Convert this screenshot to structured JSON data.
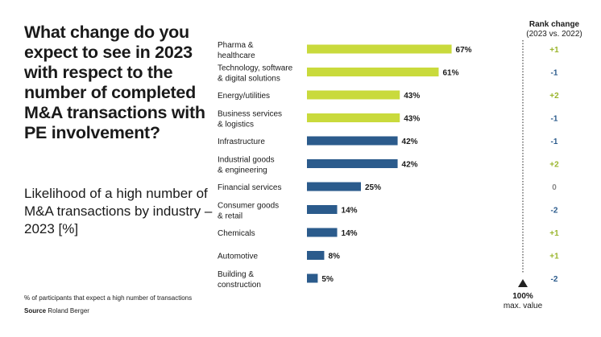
{
  "title": "What change do you expect to see in 2023 with respect to the number of completed M&A transactions with PE involvement?",
  "subtitle": "Likelihood of a high number of M&A transactions by industry – 2023 [%]",
  "note": "% of participants that expect a high number of transactions",
  "source_label": "Source",
  "source_value": "Roland Berger",
  "rank_header": {
    "line1": "Rank change",
    "line2": "(2023 vs. 2022)"
  },
  "max_marker": {
    "value": "100%",
    "label": "max. value"
  },
  "colors": {
    "highlight": "#c9da3c",
    "standard": "#2b5b8c",
    "rank_up": "#9ab52c",
    "rank_down": "#2b5b8c",
    "rank_zero": "#888888"
  },
  "chart_data": {
    "type": "bar",
    "orientation": "horizontal",
    "xlim": [
      0,
      100
    ],
    "categories": [
      [
        "Pharma &",
        "healthcare"
      ],
      [
        "Technology, software",
        "& digital solutions"
      ],
      [
        "Energy/utilities"
      ],
      [
        "Business services",
        "& logistics"
      ],
      [
        "Infrastructure"
      ],
      [
        "Industrial goods",
        "& engineering"
      ],
      [
        "Financial services"
      ],
      [
        "Consumer goods",
        "& retail"
      ],
      [
        "Chemicals"
      ],
      [
        "Automotive"
      ],
      [
        "Building &",
        "construction"
      ]
    ],
    "values": [
      67,
      61,
      43,
      43,
      42,
      42,
      25,
      14,
      14,
      8,
      5
    ],
    "value_labels": [
      "67%",
      "61%",
      "43%",
      "43%",
      "42%",
      "42%",
      "25%",
      "14%",
      "14%",
      "8%",
      "5%"
    ],
    "highlighted": [
      true,
      true,
      true,
      true,
      false,
      false,
      false,
      false,
      false,
      false,
      false
    ],
    "rank_change": [
      "+1",
      "-1",
      "+2",
      "-1",
      "-1",
      "+2",
      "0",
      "-2",
      "+1",
      "+1",
      "-2"
    ]
  }
}
